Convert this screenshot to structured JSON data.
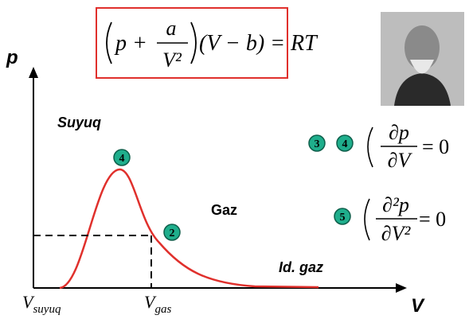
{
  "formula": {
    "p_plus": "p +",
    "numerator": "a",
    "denominator": "V²",
    "tail": "(V − b) = RT"
  },
  "axes": {
    "y": "p",
    "x": "V"
  },
  "regions": [
    "Suyuq",
    "Gaz",
    "Id. gaz"
  ],
  "x_labels": [
    {
      "main": "V",
      "sub": "suyuq"
    },
    {
      "main": "V",
      "sub": "gas"
    }
  ],
  "markers": [
    "4",
    "2",
    "3",
    "4",
    "5"
  ],
  "conditions": [
    {
      "numerator": "∂p",
      "denominator": "∂V",
      "rhs": "= 0"
    },
    {
      "numerator": "∂²p",
      "denominator": "∂V²",
      "rhs": "= 0"
    }
  ]
}
